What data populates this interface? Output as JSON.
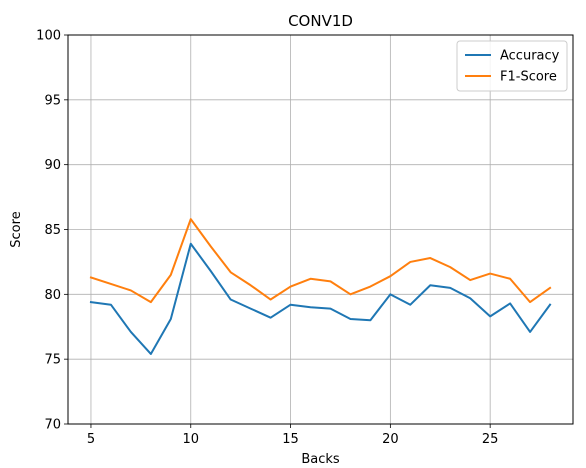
{
  "chart_data": {
    "type": "line",
    "title": "CONV1D",
    "xlabel": "Backs",
    "ylabel": "Score",
    "xlim": [
      3.85,
      29.15
    ],
    "ylim": [
      70,
      100
    ],
    "xticks": [
      5,
      10,
      15,
      20,
      25
    ],
    "yticks": [
      70,
      75,
      80,
      85,
      90,
      95,
      100
    ],
    "grid": true,
    "legend_position": "top-right",
    "x": [
      5,
      6,
      7,
      8,
      9,
      10,
      11,
      12,
      13,
      14,
      15,
      16,
      17,
      18,
      19,
      20,
      21,
      22,
      23,
      24,
      25,
      26,
      27,
      28
    ],
    "series": [
      {
        "name": "Accuracy",
        "color": "#1f77b4",
        "values": [
          79.4,
          79.2,
          77.1,
          75.4,
          78.1,
          83.9,
          81.8,
          79.6,
          78.9,
          78.2,
          79.2,
          79.0,
          78.9,
          78.1,
          78.0,
          80.0,
          79.2,
          80.7,
          80.5,
          79.7,
          78.3,
          79.3,
          77.1,
          79.2
        ]
      },
      {
        "name": "F1-Score",
        "color": "#ff7f0e",
        "values": [
          81.3,
          80.8,
          80.3,
          79.4,
          81.5,
          85.8,
          83.7,
          81.7,
          80.7,
          79.6,
          80.6,
          81.2,
          81.0,
          80.0,
          80.6,
          81.4,
          82.5,
          82.8,
          82.1,
          81.1,
          81.6,
          81.2,
          79.4,
          80.5
        ]
      }
    ]
  }
}
